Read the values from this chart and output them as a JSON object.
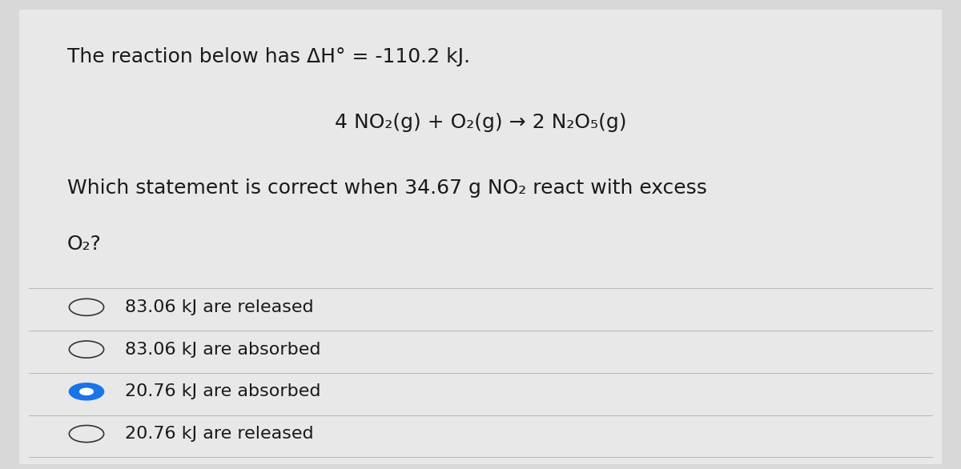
{
  "background_color": "#d8d8d8",
  "card_color": "#e8e8e8",
  "title_line1": "The reaction below has ΔH° = -110.2 kJ.",
  "equation": "4 NO₂(g) + O₂(g) → 2 N₂O₅(g)",
  "question_line1": "Which statement is correct when 34.67 g NO",
  "question_sub": "2",
  "question_line1_end": " react with excess",
  "question_line2": "O₂?",
  "options": [
    {
      "text": "83.06 kJ are released",
      "selected": false
    },
    {
      "text": "83.06 kJ are absorbed",
      "selected": false
    },
    {
      "text": "20.76 kJ are absorbed",
      "selected": true
    },
    {
      "text": "20.76 kJ are released",
      "selected": false
    }
  ],
  "text_color": "#1a1a1a",
  "line_color": "#bbbbbb",
  "circle_color": "#333333",
  "selected_circle_fill": "#1a73e8",
  "font_size_title": 18,
  "font_size_equation": 18,
  "font_size_question": 18,
  "font_size_options": 16
}
